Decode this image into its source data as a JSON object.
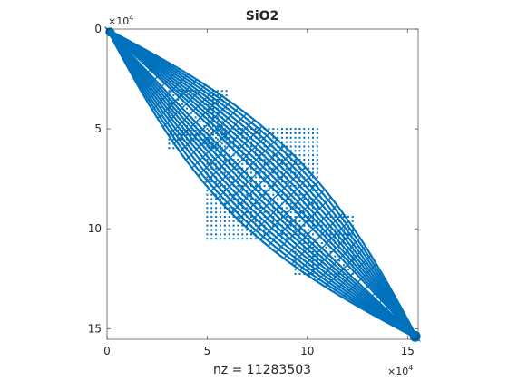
{
  "chart_data": {
    "type": "spy",
    "title": "SiO2",
    "xlabel": "nz = 11283503",
    "x_exponent_label": "×10",
    "y_exponent_label": "×10",
    "exponent_power": "4",
    "xlim": [
      0,
      155331
    ],
    "ylim": [
      0,
      155331
    ],
    "x_ticks": [
      0,
      5,
      10,
      15
    ],
    "y_ticks": [
      0,
      5,
      10,
      15
    ],
    "x_tick_labels": [
      "0",
      "5",
      "10",
      "15"
    ],
    "y_tick_labels": [
      "0",
      "5",
      "10",
      "15"
    ],
    "y_axis_direction": "reversed",
    "marker_color": "#0072BD",
    "band": {
      "half_width_rows": 15000,
      "num_nested_bands": 10,
      "grid_spacing_rows": 3500
    },
    "off_diagonal_blocks": [
      {
        "row_range": [
          31000,
          61000
        ],
        "col_range": [
          31000,
          61000
        ]
      },
      {
        "row_range": [
          50000,
          105000
        ],
        "col_range": [
          50000,
          105000
        ]
      },
      {
        "row_range": [
          94000,
          124000
        ],
        "col_range": [
          94000,
          124000
        ]
      }
    ]
  }
}
